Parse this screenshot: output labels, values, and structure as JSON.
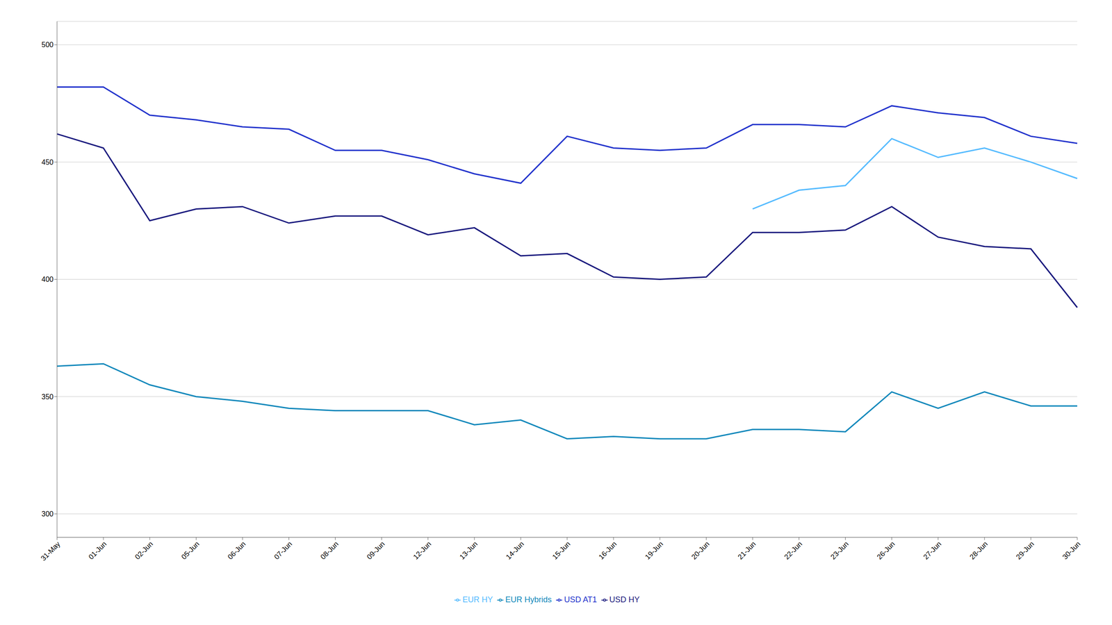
{
  "chart_data": {
    "type": "line",
    "categories": [
      "31-May",
      "01-Jun",
      "02-Jun",
      "05-Jun",
      "06-Jun",
      "07-Jun",
      "08-Jun",
      "09-Jun",
      "12-Jun",
      "13-Jun",
      "14-Jun",
      "15-Jun",
      "16-Jun",
      "19-Jun",
      "20-Jun",
      "21-Jun",
      "22-Jun",
      "23-Jun",
      "26-Jun",
      "27-Jun",
      "28-Jun",
      "29-Jun",
      "30-Jun"
    ],
    "series": [
      {
        "name": "USD HY",
        "color": "#1a1a7e",
        "values": [
          462,
          456,
          425,
          430,
          431,
          424,
          427,
          427,
          419,
          422,
          410,
          411,
          401,
          400,
          401,
          420,
          420,
          421,
          431,
          418,
          414,
          413,
          388
        ]
      },
      {
        "name": "USD AT1",
        "color": "#2233cc",
        "values": [
          482,
          482,
          470,
          468,
          465,
          464,
          455,
          455,
          451,
          445,
          441,
          461,
          456,
          455,
          456,
          466,
          466,
          465,
          474,
          471,
          469,
          461,
          458
        ]
      },
      {
        "name": "EUR HY",
        "color": "#55bbff",
        "values": [
          null,
          null,
          null,
          null,
          null,
          null,
          null,
          null,
          null,
          null,
          null,
          null,
          null,
          null,
          null,
          430,
          438,
          440,
          460,
          452,
          456,
          450,
          443
        ]
      },
      {
        "name": "EUR Hybrids",
        "color": "#1188bb",
        "values": [
          363,
          364,
          355,
          350,
          348,
          345,
          344,
          344,
          344,
          338,
          340,
          332,
          333,
          332,
          332,
          336,
          336,
          335,
          352,
          345,
          352,
          346,
          346
        ]
      }
    ],
    "ylim": [
      290,
      510
    ],
    "yticks": [
      300,
      350,
      400,
      450,
      500
    ],
    "grid": true,
    "legend": "bottom"
  }
}
